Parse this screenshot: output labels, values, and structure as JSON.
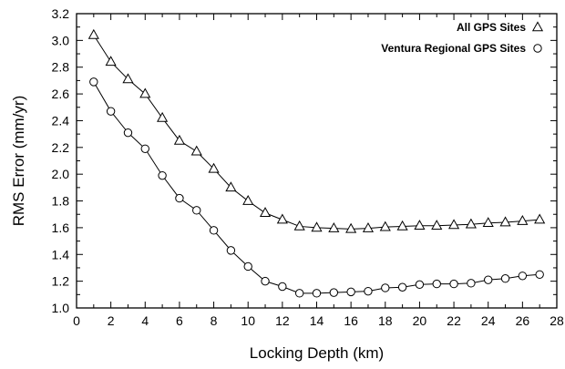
{
  "chart_data": {
    "type": "line",
    "title": "",
    "xlabel": "Locking Depth (km)",
    "ylabel": "RMS Error (mm/yr)",
    "xlim": [
      0,
      28
    ],
    "ylim": [
      1.0,
      3.2
    ],
    "xticks": [
      0,
      2,
      4,
      6,
      8,
      10,
      12,
      14,
      16,
      18,
      20,
      22,
      24,
      26,
      28
    ],
    "yticks": [
      1.0,
      1.2,
      1.4,
      1.6,
      1.8,
      2.0,
      2.2,
      2.4,
      2.6,
      2.8,
      3.0,
      3.2
    ],
    "xtick_labels": [
      "0",
      "2",
      "4",
      "6",
      "8",
      "10",
      "12",
      "14",
      "16",
      "18",
      "20",
      "22",
      "24",
      "26",
      "28"
    ],
    "ytick_labels": [
      "1.0",
      "1.2",
      "1.4",
      "1.6",
      "1.8",
      "2.0",
      "2.2",
      "2.4",
      "2.6",
      "2.8",
      "3.0",
      "3.2"
    ],
    "grid": false,
    "legend_position": "top-right",
    "x": [
      1,
      2,
      3,
      4,
      5,
      6,
      7,
      8,
      9,
      10,
      11,
      12,
      13,
      14,
      15,
      16,
      17,
      18,
      19,
      20,
      21,
      22,
      23,
      24,
      25,
      26,
      27
    ],
    "series": [
      {
        "name": "All GPS Sites",
        "marker": "triangle",
        "values": [
          3.04,
          2.84,
          2.71,
          2.6,
          2.42,
          2.25,
          2.17,
          2.04,
          1.9,
          1.8,
          1.71,
          1.66,
          1.61,
          1.6,
          1.595,
          1.59,
          1.595,
          1.605,
          1.61,
          1.615,
          1.615,
          1.62,
          1.625,
          1.635,
          1.64,
          1.65,
          1.66
        ]
      },
      {
        "name": "Ventura Regional GPS Sites",
        "marker": "circle",
        "values": [
          2.69,
          2.47,
          2.31,
          2.19,
          1.99,
          1.82,
          1.73,
          1.58,
          1.43,
          1.31,
          1.2,
          1.16,
          1.11,
          1.11,
          1.115,
          1.12,
          1.125,
          1.15,
          1.155,
          1.175,
          1.18,
          1.18,
          1.185,
          1.21,
          1.22,
          1.24,
          1.25
        ]
      }
    ],
    "colors": {
      "line": "#000000",
      "marker_fill": "#ffffff",
      "axis": "#000000"
    }
  }
}
